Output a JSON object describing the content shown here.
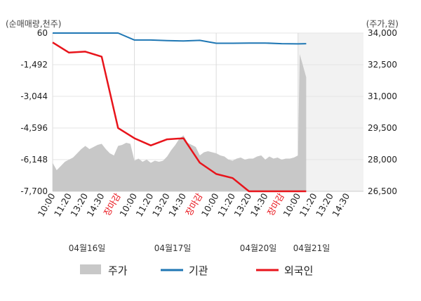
{
  "chart_data": {
    "type": "line",
    "left_axis": {
      "unit": "(순매매량,천주)",
      "ticks": [
        "60",
        "-1,492",
        "-3,044",
        "-4,596",
        "-6,148",
        "-7,700"
      ],
      "range": [
        -7700,
        60
      ]
    },
    "right_axis": {
      "unit": "(주가,원)",
      "ticks": [
        "34,000",
        "32,500",
        "31,000",
        "29,500",
        "28,000",
        "26,500"
      ],
      "range": [
        26500,
        34000
      ]
    },
    "x_tick_labels": [
      "10:00",
      "11:20",
      "13:20",
      "14:30",
      "장마감",
      "10:00",
      "11:20",
      "13:20",
      "14:30",
      "장마감",
      "10:00",
      "11:20",
      "13:20",
      "14:30",
      "장마감",
      "10:00",
      "11:20",
      "13:20",
      "14:30"
    ],
    "day_labels": [
      "04월16일",
      "04월17일",
      "04월20일",
      "04월21일"
    ],
    "legend": [
      "주가",
      "기관",
      "외국인"
    ],
    "colors": {
      "price": "#c8c8c8",
      "institution": "#1f77b4",
      "foreign": "#e8141b",
      "close_label": "#e8141b"
    },
    "series": [
      {
        "name": "주가",
        "axis": "right",
        "type": "area",
        "x": [
          0,
          0.25,
          0.5,
          0.75,
          1,
          1.25,
          1.5,
          1.75,
          2,
          2.25,
          2.5,
          2.75,
          3,
          3.25,
          3.5,
          3.75,
          4,
          4.25,
          4.5,
          4.75,
          5,
          5.25,
          5.5,
          5.75,
          6,
          6.25,
          6.5,
          6.75,
          7,
          7.25,
          7.5,
          7.75,
          8,
          8.25,
          8.5,
          8.75,
          9,
          9.25,
          9.5,
          9.75,
          10,
          10.25,
          10.5,
          10.75,
          11,
          11.25,
          11.5,
          11.75,
          12,
          12.25,
          12.5,
          12.75,
          13,
          13.25,
          13.5,
          13.75,
          14,
          14.25,
          14.5,
          14.75,
          15,
          15.1,
          15.25,
          15.5
        ],
        "values": [
          27850,
          27500,
          27700,
          27900,
          28000,
          28100,
          28300,
          28500,
          28650,
          28500,
          28600,
          28700,
          28750,
          28500,
          28300,
          28200,
          28650,
          28700,
          28800,
          28750,
          27950,
          28050,
          27900,
          28000,
          27850,
          27950,
          27900,
          27950,
          28150,
          28450,
          28700,
          29000,
          29150,
          28800,
          28700,
          28600,
          28200,
          28350,
          28400,
          28350,
          28300,
          28200,
          28150,
          28000,
          27950,
          28050,
          28100,
          28000,
          28050,
          28050,
          28150,
          28200,
          28000,
          28150,
          28050,
          28100,
          28000,
          28050,
          28050,
          28100,
          28200,
          33000,
          32600,
          31900
        ]
      },
      {
        "name": "기관",
        "axis": "left",
        "type": "line",
        "x": [
          0,
          1,
          2,
          3,
          4,
          5,
          6,
          7,
          8,
          9,
          10,
          11,
          12,
          13,
          14,
          15,
          15.5
        ],
        "values": [
          60,
          60,
          60,
          60,
          60,
          -280,
          -280,
          -310,
          -330,
          -300,
          -440,
          -440,
          -430,
          -430,
          -460,
          -470,
          -460
        ]
      },
      {
        "name": "외국인",
        "axis": "left",
        "type": "line",
        "x": [
          0,
          1,
          2,
          3,
          4,
          5,
          6,
          7,
          8,
          9,
          10,
          11,
          12,
          13,
          14,
          15,
          15.5
        ],
        "values": [
          -400,
          -900,
          -850,
          -1100,
          -4600,
          -5100,
          -5450,
          -5150,
          -5100,
          -6300,
          -6850,
          -7050,
          -7750,
          -7750,
          -8300,
          -8850,
          -7700
        ]
      }
    ]
  }
}
